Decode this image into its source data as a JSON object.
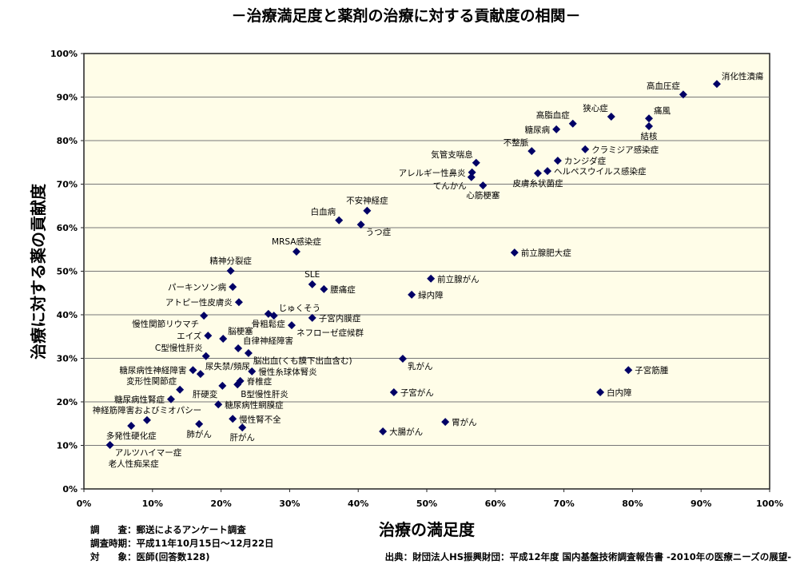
{
  "chart_data": {
    "type": "scatter",
    "title": "－治療満足度と薬剤の治療に対する貢献度の相関－",
    "xlabel": "治療の満足度",
    "ylabel": "治療に対する薬の貢献度",
    "xlim": [
      0,
      100
    ],
    "ylim": [
      0,
      100
    ],
    "x_ticks": [
      "0%",
      "10%",
      "20%",
      "30%",
      "40%",
      "50%",
      "60%",
      "70%",
      "80%",
      "90%",
      "100%"
    ],
    "y_ticks": [
      "0%",
      "10%",
      "20%",
      "30%",
      "40%",
      "50%",
      "60%",
      "70%",
      "80%",
      "90%",
      "100%"
    ],
    "grid": "horizontal",
    "marker_color": "#000066",
    "background_color": "#fffde8",
    "points": [
      {
        "label": "消化性潰瘍",
        "x": 92.3,
        "y": 93.0,
        "pos": "right-up"
      },
      {
        "label": "高血圧症",
        "x": 87.4,
        "y": 90.6,
        "pos": "left-up"
      },
      {
        "label": "痛風",
        "x": 82.4,
        "y": 85.1,
        "pos": "right-up"
      },
      {
        "label": "結核",
        "x": 82.4,
        "y": 83.3,
        "pos": "below"
      },
      {
        "label": "狭心症",
        "x": 76.9,
        "y": 85.5,
        "pos": "left-up"
      },
      {
        "label": "高脂血症",
        "x": 71.3,
        "y": 83.9,
        "pos": "left-up"
      },
      {
        "label": "糖尿病",
        "x": 68.9,
        "y": 82.6,
        "pos": "left"
      },
      {
        "label": "不整脈",
        "x": 65.3,
        "y": 77.6,
        "pos": "left-up"
      },
      {
        "label": "クラミジア感染症",
        "x": 73.1,
        "y": 78.0,
        "pos": "right"
      },
      {
        "label": "カンジダ症",
        "x": 69.1,
        "y": 75.4,
        "pos": "right-down"
      },
      {
        "label": "ヘルペスウイルス感染症",
        "x": 67.6,
        "y": 73.0,
        "pos": "right"
      },
      {
        "label": "皮膚糸状菌症",
        "x": 66.2,
        "y": 72.5,
        "pos": "below"
      },
      {
        "label": "気管支喘息",
        "x": 57.2,
        "y": 74.9,
        "pos": "left-up"
      },
      {
        "label": "アレルギー性鼻炎",
        "x": 56.6,
        "y": 72.7,
        "pos": "left"
      },
      {
        "label": "てんかん",
        "x": 56.5,
        "y": 71.6,
        "pos": "left-down"
      },
      {
        "label": "心筋梗塞",
        "x": 58.2,
        "y": 69.7,
        "pos": "below"
      },
      {
        "label": "不安神経症",
        "x": 41.3,
        "y": 63.9,
        "pos": "above"
      },
      {
        "label": "白血病",
        "x": 37.2,
        "y": 61.7,
        "pos": "left-up"
      },
      {
        "label": "うつ症",
        "x": 40.4,
        "y": 60.7,
        "pos": "right-down"
      },
      {
        "label": "MRSA感染症",
        "x": 31.0,
        "y": 54.5,
        "pos": "above"
      },
      {
        "label": "前立腺肥大症",
        "x": 62.8,
        "y": 54.3,
        "pos": "right"
      },
      {
        "label": "精神分裂症",
        "x": 21.4,
        "y": 50.1,
        "pos": "above"
      },
      {
        "label": "SLE",
        "x": 33.3,
        "y": 47.0,
        "pos": "above"
      },
      {
        "label": "腰痛症",
        "x": 35.0,
        "y": 45.9,
        "pos": "right"
      },
      {
        "label": "前立腺がん",
        "x": 50.6,
        "y": 48.3,
        "pos": "right"
      },
      {
        "label": "パーキンソン病",
        "x": 21.7,
        "y": 46.4,
        "pos": "left"
      },
      {
        "label": "緑内障",
        "x": 47.8,
        "y": 44.6,
        "pos": "right"
      },
      {
        "label": "アトピー性皮膚炎",
        "x": 22.6,
        "y": 42.9,
        "pos": "left"
      },
      {
        "label": "慢性関節リウマチ",
        "x": 17.5,
        "y": 39.8,
        "pos": "left-down"
      },
      {
        "label": "骨粗鬆症",
        "x": 26.9,
        "y": 40.2,
        "pos": "below"
      },
      {
        "label": "じゅくそう",
        "x": 27.7,
        "y": 39.8,
        "pos": "right-up"
      },
      {
        "label": "子宮内膜症",
        "x": 33.3,
        "y": 39.3,
        "pos": "right"
      },
      {
        "label": "ネフローゼ症候群",
        "x": 30.3,
        "y": 37.6,
        "pos": "right-down"
      },
      {
        "label": "エイズ",
        "x": 18.1,
        "y": 35.2,
        "pos": "left"
      },
      {
        "label": "脳梗塞",
        "x": 20.3,
        "y": 34.5,
        "pos": "right-up"
      },
      {
        "label": "自律神経障害",
        "x": 22.5,
        "y": 32.3,
        "pos": "right-up"
      },
      {
        "label": "脳出血(くも膜下出血含む)",
        "x": 24.0,
        "y": 31.2,
        "pos": "right-down"
      },
      {
        "label": "C型慢性肝炎",
        "x": 17.8,
        "y": 30.5,
        "pos": "left-up"
      },
      {
        "label": "乳がん",
        "x": 46.5,
        "y": 29.9,
        "pos": "right-down"
      },
      {
        "label": "子宮筋腫",
        "x": 79.4,
        "y": 27.3,
        "pos": "right"
      },
      {
        "label": "糖尿病性神経障害",
        "x": 15.9,
        "y": 27.3,
        "pos": "left"
      },
      {
        "label": "尿失禁/頻尿",
        "x": 17.0,
        "y": 26.4,
        "pos": "right-up"
      },
      {
        "label": "慢性糸球体腎炎",
        "x": 24.5,
        "y": 27.0,
        "pos": "right"
      },
      {
        "label": "脊椎症",
        "x": 22.8,
        "y": 24.8,
        "pos": "right"
      },
      {
        "label": "B型慢性肝炎",
        "x": 22.4,
        "y": 24.0,
        "pos": "below"
      },
      {
        "label": "変形性関節症",
        "x": 14.0,
        "y": 22.8,
        "pos": "left-up"
      },
      {
        "label": "肝硬変",
        "x": 20.2,
        "y": 23.7,
        "pos": "left-down"
      },
      {
        "label": "糖尿病性腎症",
        "x": 12.7,
        "y": 20.6,
        "pos": "left"
      },
      {
        "label": "子宮がん",
        "x": 45.2,
        "y": 22.2,
        "pos": "right"
      },
      {
        "label": "白内障",
        "x": 75.3,
        "y": 22.2,
        "pos": "right"
      },
      {
        "label": "糖尿病性網膜症",
        "x": 19.6,
        "y": 19.4,
        "pos": "right"
      },
      {
        "label": "神経筋障害およびミオパシー",
        "x": 9.2,
        "y": 15.8,
        "pos": "above"
      },
      {
        "label": "慢性腎不全",
        "x": 21.7,
        "y": 16.1,
        "pos": "right"
      },
      {
        "label": "胃がん",
        "x": 52.7,
        "y": 15.4,
        "pos": "right"
      },
      {
        "label": "肺がん",
        "x": 16.8,
        "y": 14.9,
        "pos": "below"
      },
      {
        "label": "多発性硬化症",
        "x": 6.9,
        "y": 14.5,
        "pos": "below"
      },
      {
        "label": "肝がん",
        "x": 23.1,
        "y": 14.1,
        "pos": "below"
      },
      {
        "label": "大腸がん",
        "x": 43.6,
        "y": 13.2,
        "pos": "right"
      },
      {
        "label": "アルツハイマー症",
        "x": 3.8,
        "y": 10.1,
        "pos": "right-down"
      }
    ],
    "extra_label": "老人性痴呆症"
  },
  "notes": {
    "survey_method": "調　　査：郵送によるアンケート調査",
    "survey_period": "調査時期：平成11年10月15日～12月22日",
    "subjects": "対　　象：医師(回答数128)",
    "source": "出典：財団法人HS振興財団：平成12年度 国内基盤技術調査報告書 -2010年の医療ニーズの展望-"
  }
}
